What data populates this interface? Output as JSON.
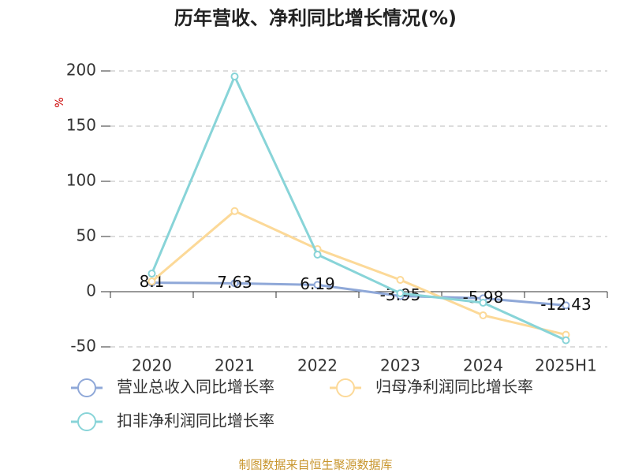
{
  "chart_data": {
    "type": "line",
    "title": "历年营收、净利同比增长情况(%)",
    "y_label": "%",
    "categories": [
      "2020",
      "2021",
      "2022",
      "2023",
      "2024",
      "2025H1"
    ],
    "series": [
      {
        "name": "营业总收入同比增长率",
        "color": "#8fa8d8",
        "values": [
          8.1,
          7.63,
          6.19,
          -3.95,
          -5.98,
          -12.43
        ],
        "show_labels": true
      },
      {
        "name": "归母净利润同比增长率",
        "color": "#fcd998",
        "values": [
          9.3,
          73,
          38.6,
          10.7,
          -21.4,
          -39
        ]
      },
      {
        "name": "扣非净利润同比增长率",
        "color": "#88d4d8",
        "values": [
          16.4,
          195,
          33.6,
          -1.4,
          -10,
          -44
        ]
      }
    ],
    "ylim": [
      -50,
      200
    ],
    "yticks": [
      -50,
      0,
      50,
      100,
      150,
      200
    ],
    "grid": true,
    "source": "制图数据来自恒生聚源数据库"
  }
}
